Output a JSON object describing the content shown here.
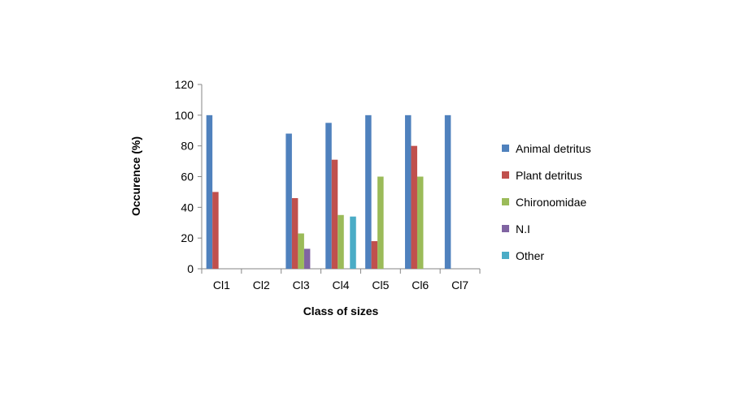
{
  "chart_data": {
    "type": "bar",
    "xlabel": "Class of sizes",
    "ylabel": "Occurence (%)",
    "ylim": [
      0,
      120
    ],
    "yticks": [
      0,
      20,
      40,
      60,
      80,
      100,
      120
    ],
    "grid": false,
    "legend_position": "right",
    "categories": [
      "Cl1",
      "Cl2",
      "Cl3",
      "Cl4",
      "Cl5",
      "Cl6",
      "Cl7"
    ],
    "series": [
      {
        "name": "Animal detritus",
        "color": "#4f81bd",
        "values": [
          100,
          0,
          88,
          95,
          100,
          100,
          100
        ]
      },
      {
        "name": "Plant detritus",
        "color": "#c0504d",
        "values": [
          50,
          0,
          46,
          71,
          18,
          80,
          0
        ]
      },
      {
        "name": "Chironomidae",
        "color": "#9bbb59",
        "values": [
          0,
          0,
          23,
          35,
          60,
          60,
          0
        ]
      },
      {
        "name": "N.I",
        "color": "#8064a2",
        "values": [
          0,
          0,
          13,
          0,
          0,
          0,
          0
        ]
      },
      {
        "name": "Other",
        "color": "#4bacc6",
        "values": [
          0,
          0,
          0,
          34,
          0,
          0,
          0
        ]
      }
    ]
  }
}
